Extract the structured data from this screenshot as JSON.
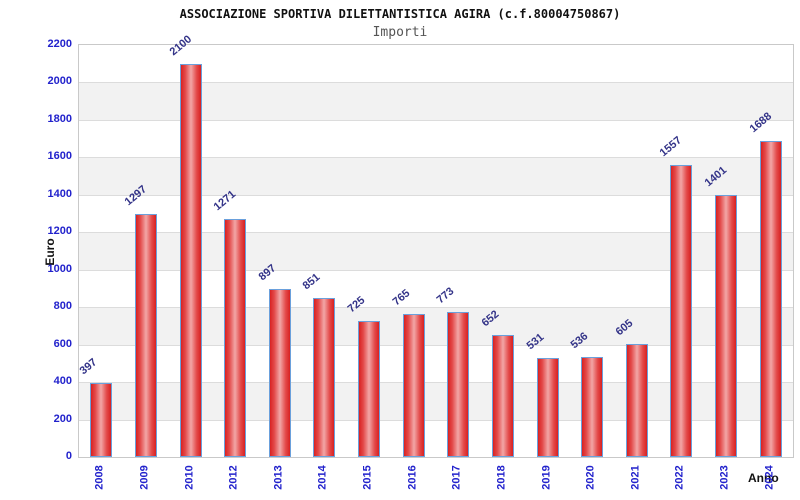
{
  "header": {
    "title": "ASSOCIAZIONE SPORTIVA DILETTANTISTICA AGIRA (c.f.80004750867)",
    "subtitle": "Importi"
  },
  "chart_data": {
    "type": "bar",
    "title": "ASSOCIAZIONE SPORTIVA DILETTANTISTICA AGIRA (c.f.80004750867)",
    "subtitle": "Importi",
    "xlabel": "Anno",
    "ylabel": "Euro",
    "categories": [
      "2008",
      "2009",
      "2010",
      "2012",
      "2013",
      "2014",
      "2015",
      "2016",
      "2017",
      "2018",
      "2019",
      "2020",
      "2021",
      "2022",
      "2023",
      "2024"
    ],
    "values": [
      397,
      1297,
      2100,
      1271,
      897,
      851,
      725,
      765,
      773,
      652,
      531,
      536,
      605,
      1557,
      1401,
      1688
    ],
    "ylim": [
      0,
      2200
    ],
    "ytick_step": 200,
    "yticks": [
      0,
      200,
      400,
      600,
      800,
      1000,
      1200,
      1400,
      1600,
      1800,
      2000,
      2200
    ],
    "grid": true,
    "legend": null,
    "colors": {
      "bar_edge": "#d92121",
      "bar_mid": "#e34b4b",
      "bar_center": "#f2a6a6",
      "bar_border": "#6aa0dc",
      "tick_label": "#2222cc",
      "value_label": "#333388",
      "band_light": "#ffffff",
      "band_dark": "#f2f2f2",
      "gridline": "#dcdcdc",
      "plot_border": "#c9c9c9"
    }
  }
}
